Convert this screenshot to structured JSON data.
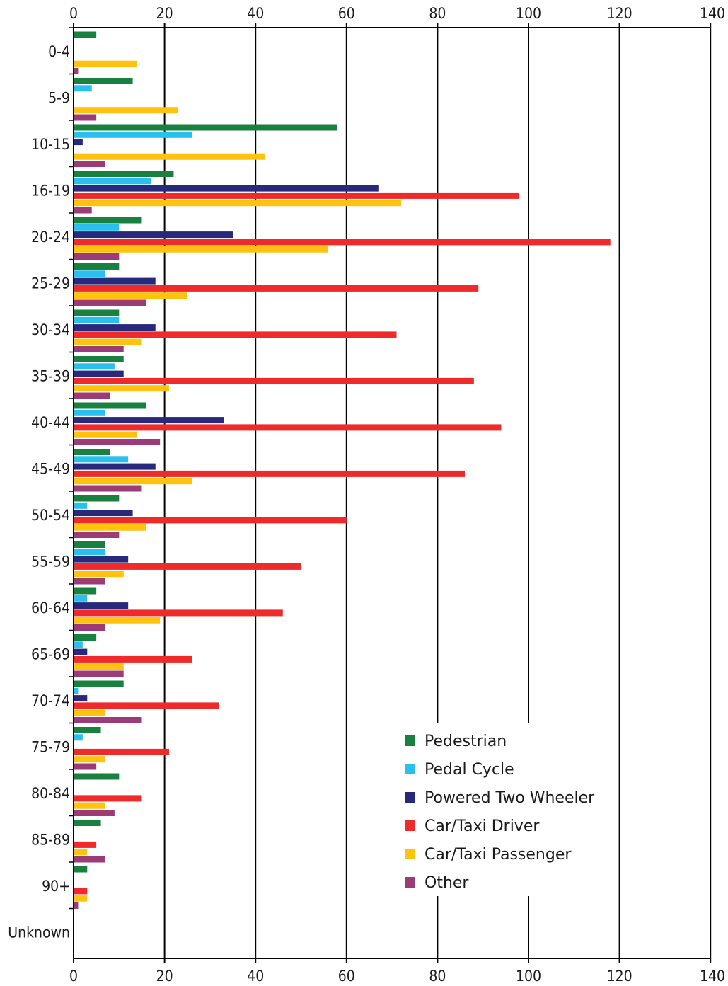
{
  "chart_data": {
    "type": "bar",
    "orientation": "horizontal",
    "title": "",
    "xlabel": "",
    "ylabel": "",
    "xlim": [
      0,
      140
    ],
    "x_ticks": [
      0,
      20,
      40,
      60,
      80,
      100,
      120,
      140
    ],
    "grid": true,
    "legend_position": "bottom-right",
    "categories": [
      "0-4",
      "5-9",
      "10-15",
      "16-19",
      "20-24",
      "25-29",
      "30-34",
      "35-39",
      "40-44",
      "45-49",
      "50-54",
      "55-59",
      "60-64",
      "65-69",
      "70-74",
      "75-79",
      "80-84",
      "85-89",
      "90+",
      "Unknown"
    ],
    "series": [
      {
        "name": "Pedestrian",
        "color": "#1a8040",
        "values": [
          5,
          13,
          58,
          22,
          15,
          10,
          10,
          11,
          16,
          8,
          10,
          7,
          5,
          5,
          11,
          6,
          10,
          6,
          3,
          0
        ]
      },
      {
        "name": "Pedal Cycle",
        "color": "#2bbfee",
        "values": [
          0,
          4,
          26,
          17,
          10,
          7,
          10,
          9,
          7,
          12,
          3,
          7,
          3,
          2,
          1,
          2,
          0,
          0,
          0,
          0
        ]
      },
      {
        "name": "Powered Two Wheeler",
        "color": "#27297a",
        "values": [
          0,
          0,
          2,
          67,
          35,
          18,
          18,
          11,
          33,
          18,
          13,
          12,
          12,
          3,
          3,
          0,
          0,
          0,
          0,
          0
        ]
      },
      {
        "name": "Car/Taxi Driver",
        "color": "#ee2a2a",
        "values": [
          0,
          0,
          0,
          98,
          118,
          89,
          71,
          88,
          94,
          86,
          60,
          50,
          46,
          26,
          32,
          21,
          15,
          5,
          3,
          0
        ]
      },
      {
        "name": "Car/Taxi Passenger",
        "color": "#ffc20e",
        "values": [
          14,
          23,
          42,
          72,
          56,
          25,
          15,
          21,
          14,
          26,
          16,
          11,
          19,
          11,
          7,
          7,
          7,
          3,
          3,
          0
        ]
      },
      {
        "name": "Other",
        "color": "#9b3b78",
        "values": [
          1,
          5,
          7,
          4,
          10,
          16,
          11,
          8,
          19,
          15,
          10,
          7,
          7,
          11,
          15,
          5,
          9,
          7,
          1,
          0
        ]
      }
    ]
  }
}
